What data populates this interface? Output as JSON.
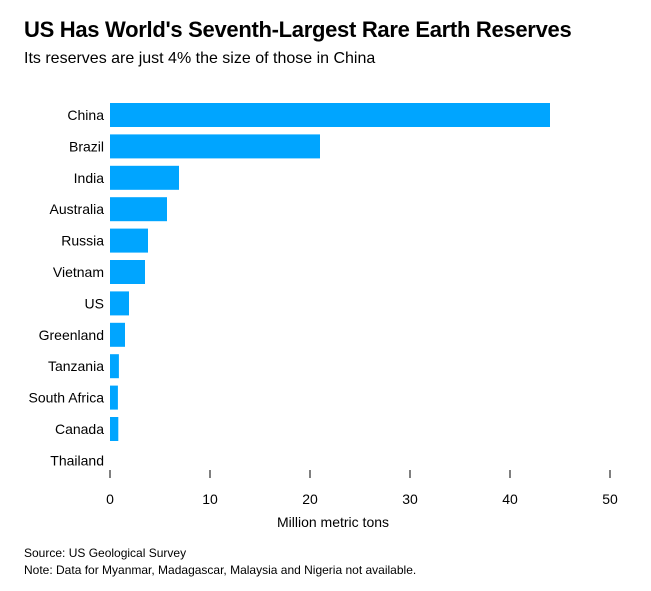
{
  "chart_data": {
    "type": "bar",
    "orientation": "horizontal",
    "title": "US Has World's Seventh-Largest Rare Earth Reserves",
    "subtitle": "Its reserves are just 4% the size of those in China",
    "categories": [
      "China",
      "Brazil",
      "India",
      "Australia",
      "Russia",
      "Vietnam",
      "US",
      "Greenland",
      "Tanzania",
      "South Africa",
      "Canada",
      "Thailand"
    ],
    "values": [
      44,
      21,
      6.9,
      5.7,
      3.8,
      3.5,
      1.9,
      1.5,
      0.89,
      0.79,
      0.83,
      0
    ],
    "xlabel": "Million metric tons",
    "ylabel": "",
    "xlim": [
      0,
      50
    ],
    "xticks": [
      0,
      10,
      20,
      30,
      40,
      50
    ],
    "grid": false,
    "bar_color": "#00a5ff"
  },
  "footer": {
    "source": "Source: US Geological Survey",
    "note": "Note: Data for Myanmar, Madagascar, Malaysia and Nigeria not available."
  }
}
